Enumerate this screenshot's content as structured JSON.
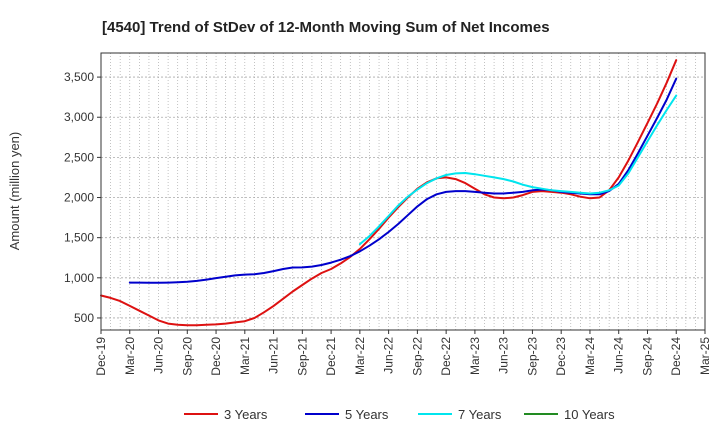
{
  "chart_data": {
    "type": "line",
    "title": "[4540]  Trend of StDev of 12-Month Moving Sum of Net Incomes",
    "xlabel": "",
    "ylabel": "Amount (million yen)",
    "ylim": [
      350,
      3800
    ],
    "yticks": [
      500,
      1000,
      1500,
      2000,
      2500,
      3000,
      3500
    ],
    "ytick_labels": [
      "500",
      "1,000",
      "1,500",
      "2,000",
      "2,500",
      "3,000",
      "3,500"
    ],
    "xlim": [
      "2019-12",
      "2025-03"
    ],
    "xtick_labels": [
      "Dec-19",
      "Mar-20",
      "Jun-20",
      "Sep-20",
      "Dec-20",
      "Mar-21",
      "Jun-21",
      "Sep-21",
      "Dec-21",
      "Mar-22",
      "Jun-22",
      "Sep-22",
      "Dec-22",
      "Mar-23",
      "Jun-23",
      "Sep-23",
      "Dec-23",
      "Mar-24",
      "Jun-24",
      "Sep-24",
      "Dec-24",
      "Mar-25"
    ],
    "grid": true,
    "legend_position": "bottom",
    "series": [
      {
        "name": "3 Years",
        "color": "#dd1111",
        "x": [
          "2019-12",
          "2020-01",
          "2020-02",
          "2020-03",
          "2020-04",
          "2020-05",
          "2020-06",
          "2020-07",
          "2020-08",
          "2020-09",
          "2020-10",
          "2020-11",
          "2020-12",
          "2021-01",
          "2021-02",
          "2021-03",
          "2021-04",
          "2021-05",
          "2021-06",
          "2021-07",
          "2021-08",
          "2021-09",
          "2021-10",
          "2021-11",
          "2021-12",
          "2022-01",
          "2022-02",
          "2022-03",
          "2022-04",
          "2022-05",
          "2022-06",
          "2022-07",
          "2022-08",
          "2022-09",
          "2022-10",
          "2022-11",
          "2022-12",
          "2023-01",
          "2023-02",
          "2023-03",
          "2023-04",
          "2023-05",
          "2023-06",
          "2023-07",
          "2023-08",
          "2023-09",
          "2023-10",
          "2023-11",
          "2023-12",
          "2024-01",
          "2024-02",
          "2024-03",
          "2024-04",
          "2024-05",
          "2024-06",
          "2024-07",
          "2024-08",
          "2024-09",
          "2024-10",
          "2024-11",
          "2024-12"
        ],
        "values": [
          780,
          750,
          710,
          650,
          590,
          530,
          470,
          430,
          415,
          410,
          410,
          415,
          420,
          430,
          445,
          460,
          500,
          570,
          650,
          740,
          830,
          910,
          990,
          1060,
          1110,
          1180,
          1260,
          1360,
          1480,
          1610,
          1750,
          1880,
          2000,
          2110,
          2190,
          2240,
          2250,
          2230,
          2180,
          2110,
          2040,
          2000,
          1990,
          2000,
          2030,
          2070,
          2080,
          2070,
          2060,
          2040,
          2010,
          1990,
          2000,
          2090,
          2250,
          2460,
          2690,
          2930,
          3170,
          3430,
          3710
        ]
      },
      {
        "name": "5 Years",
        "color": "#0000cc",
        "x": [
          "2020-03",
          "2020-04",
          "2020-05",
          "2020-06",
          "2020-07",
          "2020-08",
          "2020-09",
          "2020-10",
          "2020-11",
          "2020-12",
          "2021-01",
          "2021-02",
          "2021-03",
          "2021-04",
          "2021-05",
          "2021-06",
          "2021-07",
          "2021-08",
          "2021-09",
          "2021-10",
          "2021-11",
          "2021-12",
          "2022-01",
          "2022-02",
          "2022-03",
          "2022-04",
          "2022-05",
          "2022-06",
          "2022-07",
          "2022-08",
          "2022-09",
          "2022-10",
          "2022-11",
          "2022-12",
          "2023-01",
          "2023-02",
          "2023-03",
          "2023-04",
          "2023-05",
          "2023-06",
          "2023-07",
          "2023-08",
          "2023-09",
          "2023-10",
          "2023-11",
          "2023-12",
          "2024-01",
          "2024-02",
          "2024-03",
          "2024-04",
          "2024-05",
          "2024-06",
          "2024-07",
          "2024-08",
          "2024-09",
          "2024-10",
          "2024-11",
          "2024-12"
        ],
        "values": [
          940,
          940,
          938,
          938,
          940,
          944,
          950,
          962,
          978,
          996,
          1014,
          1030,
          1040,
          1044,
          1060,
          1084,
          1110,
          1128,
          1130,
          1140,
          1160,
          1190,
          1226,
          1270,
          1330,
          1400,
          1480,
          1570,
          1670,
          1780,
          1890,
          1980,
          2040,
          2070,
          2080,
          2080,
          2070,
          2060,
          2050,
          2050,
          2060,
          2070,
          2090,
          2100,
          2090,
          2070,
          2060,
          2050,
          2040,
          2040,
          2080,
          2170,
          2340,
          2550,
          2770,
          2990,
          3220,
          3480
        ]
      },
      {
        "name": "7 Years",
        "color": "#00e5ee",
        "x": [
          "2022-03",
          "2022-04",
          "2022-05",
          "2022-06",
          "2022-07",
          "2022-08",
          "2022-09",
          "2022-10",
          "2022-11",
          "2022-12",
          "2023-01",
          "2023-02",
          "2023-03",
          "2023-04",
          "2023-05",
          "2023-06",
          "2023-07",
          "2023-08",
          "2023-09",
          "2023-10",
          "2023-11",
          "2023-12",
          "2024-01",
          "2024-02",
          "2024-03",
          "2024-04",
          "2024-05",
          "2024-06",
          "2024-07",
          "2024-08",
          "2024-09",
          "2024-10",
          "2024-11",
          "2024-12"
        ],
        "values": [
          1420,
          1520,
          1640,
          1770,
          1900,
          2010,
          2100,
          2180,
          2240,
          2280,
          2300,
          2305,
          2290,
          2270,
          2250,
          2230,
          2200,
          2160,
          2130,
          2110,
          2090,
          2080,
          2070,
          2060,
          2050,
          2060,
          2090,
          2150,
          2300,
          2500,
          2700,
          2900,
          3090,
          3270
        ]
      },
      {
        "name": "10 Years",
        "color": "#228b22",
        "x": [],
        "values": []
      }
    ]
  }
}
